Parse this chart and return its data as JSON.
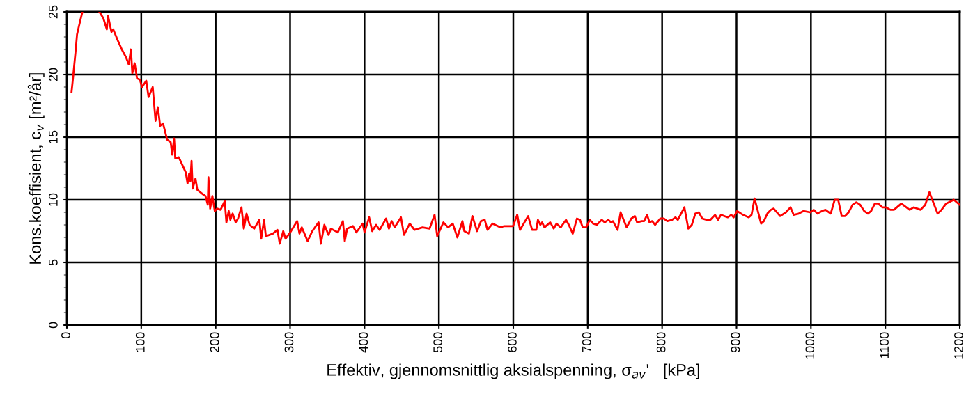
{
  "chart_data": {
    "type": "line",
    "xlabel": "Effektiv, gjennomsnittlig aksialspenning, σ$_{av}$'   [kPa]",
    "ylabel": "Kons.koeffisient, c$_{v}$ [m²/år]",
    "xlim": [
      0,
      1200
    ],
    "ylim": [
      0,
      25
    ],
    "xticks": [
      0,
      100,
      200,
      300,
      400,
      500,
      600,
      700,
      800,
      900,
      1000,
      1100,
      1200
    ],
    "yticks": [
      0,
      5,
      10,
      15,
      20,
      25
    ],
    "grid": true,
    "marker": "none",
    "line_style": "solid",
    "series": [
      {
        "color": "#ff0000",
        "x": [
          6.3,
          8.4,
          11.5,
          13.7,
          16.8,
          20.9,
          32,
          43.7,
          49,
          53.7,
          55.3,
          59.9,
          62.4,
          69.3,
          73.9,
          79.3,
          83.2,
          86.1,
          88,
          91.1,
          94.3,
          98,
          101.1,
          106.7,
          109.8,
          115.4,
          119.2,
          122.3,
          125.4,
          129.2,
          134.8,
          139.5,
          141.6,
          144.1,
          145.7,
          150.4,
          159.7,
          162.2,
          164.4,
          166,
          167.6,
          169.1,
          172.9,
          175.3,
          181.6,
          186.3,
          189.4,
          190.3,
          192.6,
          195.6,
          198.8,
          201.9,
          206.6,
          212.2,
          214.4,
          217.5,
          219.7,
          222.8,
          226.8,
          230,
          234.7,
          237.8,
          241.5,
          245.6,
          251.8,
          258.7,
          261.2,
          265,
          267.4,
          276.8,
          283,
          286.1,
          290.8,
          293.9,
          300.2,
          309.5,
          312.6,
          315.7,
          323.6,
          329.8,
          338.3,
          341.4,
          346.1,
          351.7,
          354.8,
          364.1,
          371,
          373.5,
          376.6,
          384.4,
          389.1,
          397.5,
          400,
          406.3,
          410.3,
          415.6,
          420.3,
          429,
          432.8,
          436.5,
          440.6,
          449,
          453.1,
          460.8,
          467.1,
          478,
          487.4,
          494.2,
          497.7,
          506.1,
          512.3,
          518.6,
          524.8,
          531.6,
          534.1,
          540.4,
          545,
          551.3,
          556.6,
          561.6,
          565.3,
          572.2,
          582.5,
          587.8,
          599.7,
          605.3,
          609,
          619.9,
          625.3,
          630.9,
          633.1,
          636.3,
          638.7,
          641.9,
          649.6,
          654.3,
          658.1,
          663.7,
          670.9,
          674.6,
          679.9,
          685.5,
          689.6,
          693.3,
          698,
          702.7,
          707.4,
          712.1,
          718.9,
          722.9,
          727.6,
          731.4,
          733.9,
          740.1,
          744.2,
          752.3,
          758.6,
          763.3,
          766.4,
          772.6,
          775.8,
          779.8,
          783,
          786.7,
          790.5,
          797.6,
          802.3,
          807,
          813.3,
          818,
          821.1,
          829.9,
          835.2,
          839.9,
          844.6,
          849.3,
          854,
          860.2,
          864.9,
          871.2,
          875.2,
          879,
          888.3,
          893,
          896.1,
          900.8,
          908.7,
          916.4,
          920.2,
          924.2,
          933,
          936.7,
          941.4,
          946.1,
          949.9,
          958.6,
          966.4,
          972.6,
          976.7,
          983.6,
          989.8,
          999.1,
          1003.8,
          1008.5,
          1014.8,
          1019.4,
          1026.6,
          1031.9,
          1036.6,
          1041.3,
          1045.9,
          1050.6,
          1056,
          1060.9,
          1066.2,
          1071.6,
          1076.5,
          1080.9,
          1085.9,
          1090.3,
          1095.9,
          1100.6,
          1106.8,
          1111.5,
          1121.5,
          1132.7,
          1138,
          1147.4,
          1153.6,
          1159.2,
          1170.2,
          1175.5,
          1181.7,
          1192,
          1200
        ],
        "values": [
          18.6,
          19.8,
          21.7,
          23.2,
          24.0,
          25,
          null,
          25,
          24.5,
          23.6,
          24.7,
          23.4,
          23.6,
          22.6,
          22.0,
          21.4,
          20.8,
          22.0,
          20.1,
          20.9,
          19.7,
          19.6,
          19.0,
          19.5,
          18.2,
          19.0,
          16.3,
          17.4,
          15.9,
          16.1,
          14.8,
          14.6,
          13.6,
          14.9,
          13.3,
          13.4,
          12.2,
          11.3,
          12.1,
          11.5,
          13.1,
          10.9,
          11.7,
          10.8,
          10.5,
          10.3,
          9.6,
          11.8,
          9.3,
          10.3,
          9.1,
          9.3,
          9.2,
          9.9,
          8.2,
          9.1,
          8.4,
          8.9,
          8.2,
          8.5,
          9.4,
          7.7,
          8.9,
          8.0,
          7.7,
          8.4,
          6.9,
          8.4,
          7.1,
          7.3,
          7.6,
          6.5,
          7.5,
          6.9,
          7.4,
          8.3,
          7.3,
          7.8,
          6.7,
          7.5,
          8.2,
          6.5,
          8.0,
          7.2,
          7.7,
          7.4,
          8.3,
          6.7,
          7.7,
          7.9,
          7.4,
          8.1,
          7.4,
          8.6,
          7.5,
          8.0,
          7.6,
          8.5,
          7.7,
          8.3,
          7.8,
          8.6,
          7.2,
          8.1,
          7.6,
          7.8,
          7.7,
          8.8,
          7.1,
          8.2,
          7.8,
          8.1,
          7.0,
          8.3,
          7.5,
          7.3,
          8.7,
          7.5,
          8.3,
          8.4,
          7.6,
          8.1,
          7.8,
          7.9,
          7.9,
          8.8,
          7.6,
          8.7,
          7.6,
          7.6,
          8.4,
          8.0,
          8.2,
          7.8,
          8.2,
          7.7,
          8.1,
          7.8,
          8.4,
          8.0,
          7.3,
          8.5,
          8.4,
          7.8,
          7.8,
          8.4,
          8.1,
          8.0,
          8.4,
          8.2,
          8.4,
          8.2,
          8.3,
          7.6,
          9.0,
          7.8,
          8.5,
          8.7,
          8.2,
          8.3,
          8.3,
          8.8,
          8.2,
          8.3,
          8.0,
          8.5,
          8.5,
          8.3,
          8.4,
          8.6,
          8.4,
          9.4,
          7.7,
          8.0,
          8.9,
          9.0,
          8.5,
          8.4,
          8.4,
          8.8,
          8.4,
          8.8,
          8.6,
          8.8,
          8.6,
          9.1,
          8.8,
          8.6,
          8.8,
          10.1,
          8.1,
          8.3,
          8.9,
          9.2,
          9.3,
          8.7,
          9.0,
          9.4,
          8.8,
          8.9,
          9.1,
          9.0,
          9.2,
          8.9,
          9.1,
          9.2,
          8.9,
          10.0,
          10.0,
          8.7,
          8.7,
          9.0,
          9.6,
          9.8,
          9.6,
          9.1,
          8.9,
          9.1,
          9.7,
          9.7,
          9.4,
          9.4,
          9.2,
          9.2,
          9.7,
          9.2,
          9.4,
          9.2,
          9.6,
          10.6,
          8.9,
          9.2,
          9.7,
          10.0,
          9.6
        ]
      }
    ]
  }
}
